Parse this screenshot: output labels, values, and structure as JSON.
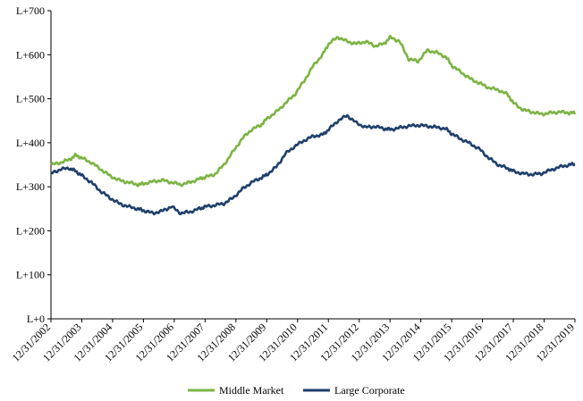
{
  "chart_data": {
    "type": "line",
    "title": "",
    "xlabel": "",
    "ylabel": "",
    "ylim": [
      0,
      700
    ],
    "y_ticks": [
      0,
      100,
      200,
      300,
      400,
      500,
      600,
      700
    ],
    "y_tick_labels": [
      "L+0",
      "L+100",
      "L+200",
      "L+300",
      "L+400",
      "L+500",
      "L+600",
      "L+700"
    ],
    "x_tick_labels": [
      "12/31/2002",
      "12/31/2003",
      "12/31/2004",
      "12/31/2005",
      "12/31/2006",
      "12/31/2007",
      "12/31/2008",
      "12/31/2009",
      "12/31/2010",
      "12/31/2011",
      "12/31/2012",
      "12/31/2013",
      "12/31/2014",
      "12/31/2015",
      "12/31/2016",
      "12/31/2017",
      "12/31/2018",
      "12/31/2019"
    ],
    "xlim": [
      2002.99,
      2019.99
    ],
    "grid": false,
    "legend_position": "bottom",
    "series": [
      {
        "name": "Middle Market",
        "color": "#7cb342",
        "x": [
          2003.0,
          2003.3,
          2003.6,
          2003.8,
          2004.0,
          2004.3,
          2004.6,
          2004.9,
          2005.2,
          2005.5,
          2005.8,
          2006.0,
          2006.3,
          2006.6,
          2006.9,
          2007.2,
          2007.5,
          2007.8,
          2008.0,
          2008.3,
          2008.6,
          2008.9,
          2009.2,
          2009.5,
          2009.8,
          2010.0,
          2010.3,
          2010.6,
          2010.9,
          2011.2,
          2011.5,
          2011.8,
          2012.0,
          2012.3,
          2012.6,
          2012.9,
          2013.2,
          2013.5,
          2013.8,
          2014.0,
          2014.3,
          2014.6,
          2014.9,
          2015.2,
          2015.5,
          2015.8,
          2016.0,
          2016.3,
          2016.6,
          2016.9,
          2017.2,
          2017.5,
          2017.8,
          2018.0,
          2018.3,
          2018.6,
          2018.9,
          2019.2,
          2019.5,
          2019.8,
          2020.0
        ],
        "values": [
          350,
          355,
          362,
          372,
          365,
          355,
          340,
          325,
          315,
          310,
          305,
          307,
          312,
          315,
          310,
          305,
          310,
          318,
          322,
          328,
          350,
          380,
          410,
          430,
          440,
          455,
          470,
          490,
          510,
          540,
          575,
          600,
          625,
          640,
          630,
          625,
          630,
          620,
          625,
          640,
          630,
          590,
          585,
          610,
          605,
          595,
          575,
          560,
          545,
          535,
          525,
          520,
          510,
          490,
          475,
          470,
          465,
          468,
          470,
          468,
          468
        ]
      },
      {
        "name": "Large Corporate",
        "color": "#1f3f6b",
        "x": [
          2003.0,
          2003.3,
          2003.6,
          2003.8,
          2004.0,
          2004.3,
          2004.6,
          2004.9,
          2005.2,
          2005.5,
          2005.8,
          2006.0,
          2006.3,
          2006.6,
          2006.9,
          2007.2,
          2007.5,
          2007.8,
          2008.0,
          2008.3,
          2008.6,
          2008.9,
          2009.2,
          2009.5,
          2009.8,
          2010.0,
          2010.3,
          2010.6,
          2010.9,
          2011.2,
          2011.5,
          2011.8,
          2012.0,
          2012.3,
          2012.6,
          2012.9,
          2013.2,
          2013.5,
          2013.8,
          2014.0,
          2014.3,
          2014.6,
          2014.9,
          2015.2,
          2015.5,
          2015.8,
          2016.0,
          2016.3,
          2016.6,
          2016.9,
          2017.2,
          2017.5,
          2017.8,
          2018.0,
          2018.3,
          2018.6,
          2018.9,
          2019.2,
          2019.5,
          2019.8,
          2020.0
        ],
        "values": [
          330,
          340,
          342,
          335,
          325,
          310,
          290,
          275,
          262,
          255,
          250,
          246,
          240,
          245,
          255,
          240,
          243,
          250,
          255,
          258,
          262,
          275,
          295,
          310,
          320,
          328,
          345,
          375,
          392,
          405,
          415,
          418,
          430,
          450,
          462,
          445,
          435,
          437,
          432,
          430,
          434,
          438,
          440,
          438,
          435,
          432,
          420,
          408,
          398,
          385,
          365,
          350,
          342,
          335,
          330,
          328,
          330,
          338,
          345,
          350,
          352
        ]
      }
    ]
  }
}
